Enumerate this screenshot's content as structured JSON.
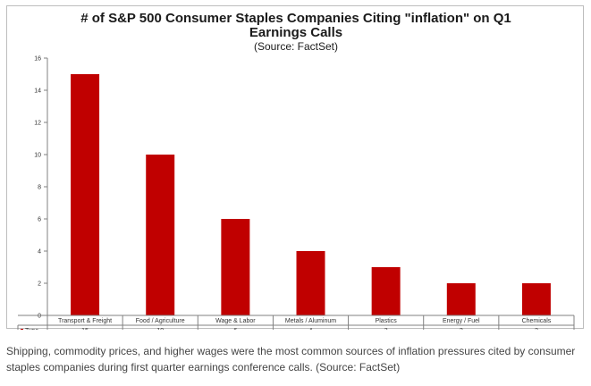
{
  "chart_data": {
    "type": "bar",
    "title_line1": "# of S&P 500 Consumer Staples Companies Citing \"inflation\" on Q1",
    "title_line2": "Earnings Calls",
    "subtitle": "(Source: FactSet)",
    "categories": [
      "Transport & Freight",
      "Food / Agriculture",
      "Wage & Labor",
      "Metals / Aluminum",
      "Plastics",
      "Energy / Fuel",
      "Chemicals"
    ],
    "series": [
      {
        "name": "Type",
        "values": [
          15,
          10,
          6,
          4,
          3,
          2,
          2
        ],
        "color": "#c00000"
      }
    ],
    "ylim": [
      0,
      16
    ],
    "yticks": [
      0,
      2,
      4,
      6,
      8,
      10,
      12,
      14,
      16
    ],
    "grid": false,
    "legend": "data-table-row"
  },
  "caption": "Shipping, commodity prices, and higher wages were the most common sources of inflation pressures cited by consumer staples companies during first quarter earnings conference calls. (Source: FactSet)"
}
